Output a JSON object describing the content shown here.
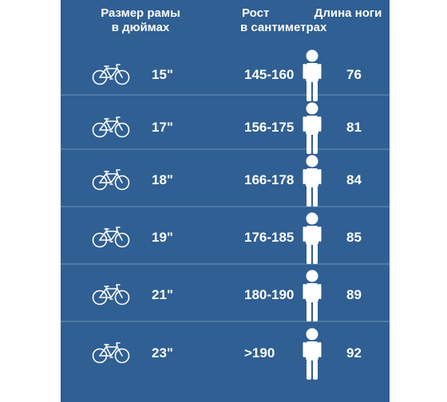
{
  "header": {
    "frame_size": [
      "Размер рамы",
      "в дюймах"
    ],
    "height": [
      "Рост",
      "в сантиметрах"
    ],
    "leg_length": "Длина ноги"
  },
  "rows": [
    {
      "frame": "15\"",
      "height": "145-160",
      "leg": "76"
    },
    {
      "frame": "17\"",
      "height": "156-175",
      "leg": "81"
    },
    {
      "frame": "18\"",
      "height": "166-178",
      "leg": "84"
    },
    {
      "frame": "19\"",
      "height": "176-185",
      "leg": "85"
    },
    {
      "frame": "21\"",
      "height": "180-190",
      "leg": "89"
    },
    {
      "frame": "23\"",
      "height": ">190",
      "leg": "92"
    }
  ],
  "icons": {
    "bike": "bicycle-icon",
    "person": "person-icon"
  },
  "colors": {
    "background": "#2f5f93",
    "separator": "#4d79a8",
    "text": "#ffffff"
  }
}
